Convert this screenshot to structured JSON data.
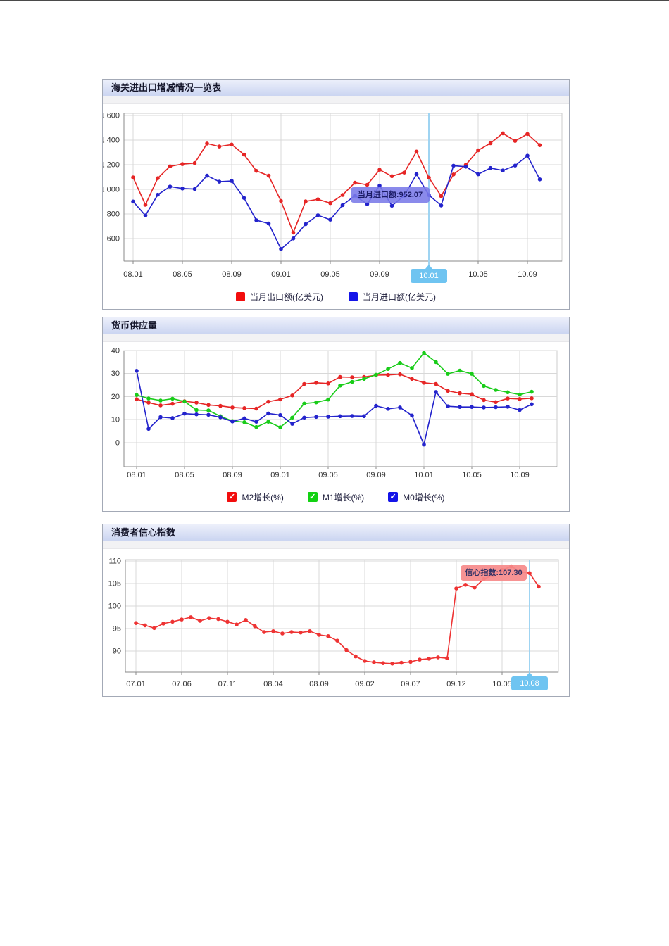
{
  "chart_data": [
    {
      "type": "line",
      "header": "海关进出口增减情况一览表",
      "x": [
        "08.01",
        "08.02",
        "08.03",
        "08.04",
        "08.05",
        "08.06",
        "08.07",
        "08.08",
        "08.09",
        "08.10",
        "08.11",
        "08.12",
        "09.01",
        "09.02",
        "09.03",
        "09.04",
        "09.05",
        "09.06",
        "09.07",
        "09.08",
        "09.09",
        "09.10",
        "09.11",
        "09.12",
        "10.01",
        "10.02",
        "10.03",
        "10.04",
        "10.05",
        "10.06",
        "10.07",
        "10.08",
        "10.09",
        "10.10"
      ],
      "x_label_every": 4,
      "x_tick_labels": [
        "08.01",
        "08.05",
        "08.09",
        "09.01",
        "09.05",
        "09.09",
        "10.01",
        "10.05",
        "10.09"
      ],
      "ylim": [
        417,
        1617
      ],
      "y_tick_values": [
        600,
        800,
        1000,
        1200,
        1400,
        1600
      ],
      "y_tick_labels": [
        "600",
        "800",
        "1 000",
        "1 200",
        "1 400",
        "1 600"
      ],
      "grid": true,
      "legend_position": "bottom",
      "series": [
        {
          "name": "当月出口额(亿美元)",
          "color": "#e62525",
          "values": [
            1097,
            874,
            1090,
            1187,
            1205,
            1213,
            1372,
            1348,
            1364,
            1283,
            1150,
            1111,
            905,
            649,
            902,
            919,
            888,
            954,
            1054,
            1037,
            1159,
            1107,
            1136,
            1307,
            1095,
            945,
            1121,
            1199,
            1317,
            1374,
            1455,
            1393,
            1449,
            1359
          ]
        },
        {
          "name": "当月进口额(亿美元)",
          "color": "#2323cc",
          "values": [
            901,
            788,
            956,
            1022,
            1007,
            1003,
            1111,
            1062,
            1068,
            930,
            749,
            722,
            515,
            601,
            717,
            789,
            753,
            872,
            949,
            880,
            1030,
            867,
            948,
            1123,
            953,
            869,
            1192,
            1184,
            1122,
            1173,
            1153,
            1193,
            1273,
            1081
          ]
        }
      ],
      "highlight": {
        "label": "10.01",
        "index": 24,
        "color": "#6fc4f1",
        "line_color": "#9fd4f2"
      },
      "tooltip": {
        "text": "当月进口额:952.07",
        "anchor_index": 24,
        "anchor_value": 953,
        "bg": "rgba(122,122,232,0.88)"
      }
    },
    {
      "type": "line",
      "header": "货币供应量",
      "x": [
        "08.01",
        "08.02",
        "08.03",
        "08.04",
        "08.05",
        "08.06",
        "08.07",
        "08.08",
        "08.09",
        "08.10",
        "08.11",
        "08.12",
        "09.01",
        "09.02",
        "09.03",
        "09.04",
        "09.05",
        "09.06",
        "09.07",
        "09.08",
        "09.09",
        "09.10",
        "09.11",
        "09.12",
        "10.01",
        "10.02",
        "10.03",
        "10.04",
        "10.05",
        "10.06",
        "10.07",
        "10.08",
        "10.09",
        "10.10"
      ],
      "x_label_every": 4,
      "x_tick_labels": [
        "08.01",
        "08.05",
        "08.09",
        "09.01",
        "09.05",
        "09.09",
        "10.01",
        "10.05",
        "10.09"
      ],
      "ylim": [
        -10.4,
        40
      ],
      "y_tick_values": [
        0,
        10,
        20,
        30,
        40
      ],
      "y_tick_labels": [
        "0",
        "10",
        "20",
        "30",
        "40"
      ],
      "grid": true,
      "legend_position": "bottom",
      "legend_style": "checkbox",
      "series": [
        {
          "name": "M2增长(%)",
          "color": "#e62525",
          "values": [
            18.9,
            17.4,
            16.2,
            16.9,
            18.0,
            17.4,
            16.4,
            16.0,
            15.3,
            15.0,
            14.8,
            17.8,
            18.8,
            20.5,
            25.5,
            26.0,
            25.7,
            28.5,
            28.4,
            28.5,
            29.3,
            29.4,
            29.7,
            27.7,
            26.0,
            25.5,
            22.5,
            21.5,
            21.0,
            18.5,
            17.6,
            19.2,
            19.0,
            19.3
          ]
        },
        {
          "name": "M1增长(%)",
          "color": "#18cc18",
          "values": [
            20.7,
            19.2,
            18.3,
            19.1,
            17.9,
            14.2,
            14.0,
            11.5,
            9.4,
            8.9,
            6.8,
            9.1,
            6.7,
            10.9,
            17.0,
            17.5,
            18.7,
            24.8,
            26.4,
            27.7,
            29.5,
            32.0,
            34.6,
            32.4,
            39.0,
            35.0,
            29.9,
            31.3,
            29.9,
            24.6,
            22.9,
            21.9,
            20.9,
            22.1
          ]
        },
        {
          "name": "M0增长(%)",
          "color": "#2323cc",
          "values": [
            31.2,
            6.0,
            11.1,
            10.7,
            12.6,
            12.3,
            12.1,
            11.0,
            9.2,
            10.6,
            9.1,
            12.7,
            12.0,
            8.2,
            10.9,
            11.2,
            11.3,
            11.5,
            11.6,
            11.5,
            16.0,
            14.7,
            15.3,
            11.8,
            -0.8,
            22.0,
            15.8,
            15.5,
            15.5,
            15.3,
            15.4,
            15.6,
            14.2,
            16.7
          ]
        }
      ]
    },
    {
      "type": "line",
      "header": "消费者信心指数",
      "x": [
        "07.01",
        "07.02",
        "07.03",
        "07.04",
        "07.05",
        "07.06",
        "07.07",
        "07.08",
        "07.09",
        "07.10",
        "07.11",
        "07.12",
        "08.01",
        "08.02",
        "08.03",
        "08.04",
        "08.05",
        "08.06",
        "08.07",
        "08.08",
        "08.09",
        "08.10",
        "08.11",
        "08.12",
        "09.01",
        "09.02",
        "09.03",
        "09.04",
        "09.05",
        "09.06",
        "09.07",
        "09.08",
        "09.09",
        "09.10",
        "09.11",
        "09.12",
        "10.01",
        "10.02",
        "10.03",
        "10.04",
        "10.05",
        "10.06",
        "10.07",
        "10.08",
        "10.09"
      ],
      "x_label_every": 5,
      "x_tick_labels": [
        "07.01",
        "07.06",
        "07.11",
        "08.04",
        "08.09",
        "09.02",
        "09.07",
        "09.12",
        "10.05"
      ],
      "ylim": [
        85.3,
        110.3
      ],
      "y_tick_values": [
        90,
        95,
        100,
        105,
        110
      ],
      "y_tick_labels": [
        "90",
        "95",
        "100",
        "105",
        "110"
      ],
      "grid": true,
      "series": [
        {
          "name": "信心指数",
          "color": "#ee3333",
          "values": [
            96.2,
            95.7,
            95.1,
            96.1,
            96.5,
            97.0,
            97.5,
            96.7,
            97.3,
            97.1,
            96.5,
            95.9,
            96.9,
            95.5,
            94.2,
            94.4,
            93.9,
            94.2,
            94.1,
            94.4,
            93.6,
            93.3,
            92.3,
            90.2,
            88.8,
            87.8,
            87.5,
            87.3,
            87.2,
            87.4,
            87.6,
            88.1,
            88.3,
            88.6,
            88.4,
            103.9,
            104.7,
            104.1,
            106.0,
            106.8,
            108.0,
            108.8,
            107.6,
            107.3,
            104.3
          ]
        }
      ],
      "highlight": {
        "label": "10.08",
        "index": 43,
        "color": "#6fc4f1",
        "line_color": "#9fd4f2"
      },
      "tooltip": {
        "text": "信心指数:107.30",
        "anchor_index": 43,
        "anchor_value": 107.3,
        "bg": "rgba(246,138,138,0.92)"
      }
    }
  ]
}
